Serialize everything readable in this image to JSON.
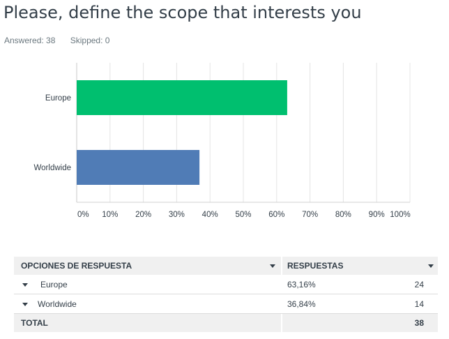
{
  "question": {
    "title": "Please, define the scope that interests you",
    "answered": "Answered: 38",
    "skipped": "Skipped: 0"
  },
  "chart_data": {
    "type": "bar",
    "orientation": "horizontal",
    "categories": [
      "Europe",
      "Worldwide"
    ],
    "values": [
      63.16,
      36.84
    ],
    "colors": [
      "#00bf6f",
      "#507cb6"
    ],
    "xlim": [
      0,
      100
    ],
    "xticks": [
      "0%",
      "10%",
      "20%",
      "30%",
      "40%",
      "50%",
      "60%",
      "70%",
      "80%",
      "90%",
      "100%"
    ],
    "grid": true,
    "title": "",
    "xlabel": "",
    "ylabel": ""
  },
  "table": {
    "headers": [
      "OPCIONES DE RESPUESTA",
      "RESPUESTAS"
    ],
    "rows": [
      {
        "label": "Europe",
        "percent": "63,16%",
        "count": "24"
      },
      {
        "label": "Worldwide",
        "percent": "36,84%",
        "count": "14"
      }
    ],
    "total_label": "TOTAL",
    "total_count": "38"
  }
}
